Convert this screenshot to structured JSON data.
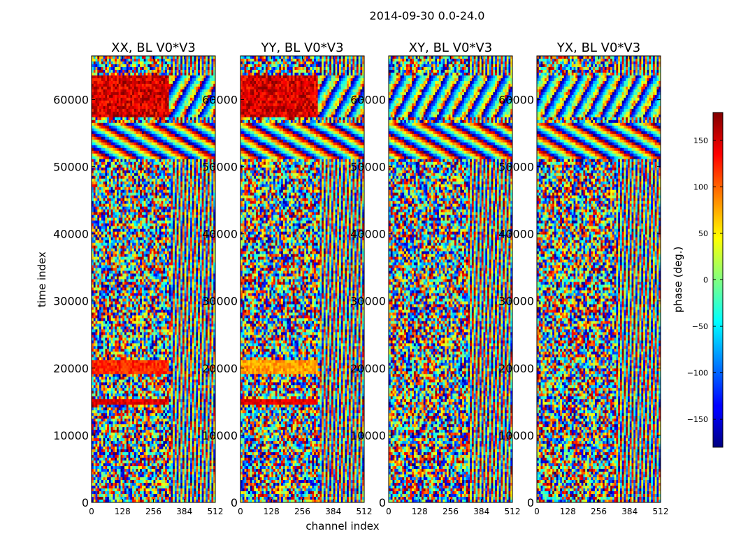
{
  "chart_data": {
    "type": "heatmap",
    "title": "2014-09-30 0.0-24.0",
    "xlabel": "channel index",
    "ylabel": "time index",
    "x_range": [
      0,
      512
    ],
    "y_range": [
      0,
      66500
    ],
    "x_ticks": [
      "0",
      "128",
      "256",
      "384",
      "512"
    ],
    "y_ticks": [
      "0",
      "10000",
      "20000",
      "30000",
      "40000",
      "50000",
      "60000"
    ],
    "colormap": "jet",
    "panels": [
      {
        "title": "XX, BL V0*V3"
      },
      {
        "title": "YY, BL V0*V3"
      },
      {
        "title": "XY, BL V0*V3"
      },
      {
        "title": "YX, BL V0*V3"
      }
    ],
    "colorbar": {
      "label": "phase (deg.)",
      "range": [
        -180,
        180
      ],
      "ticks": [
        "150",
        "100",
        "50",
        "0",
        "−50",
        "−100",
        "−150"
      ]
    }
  }
}
